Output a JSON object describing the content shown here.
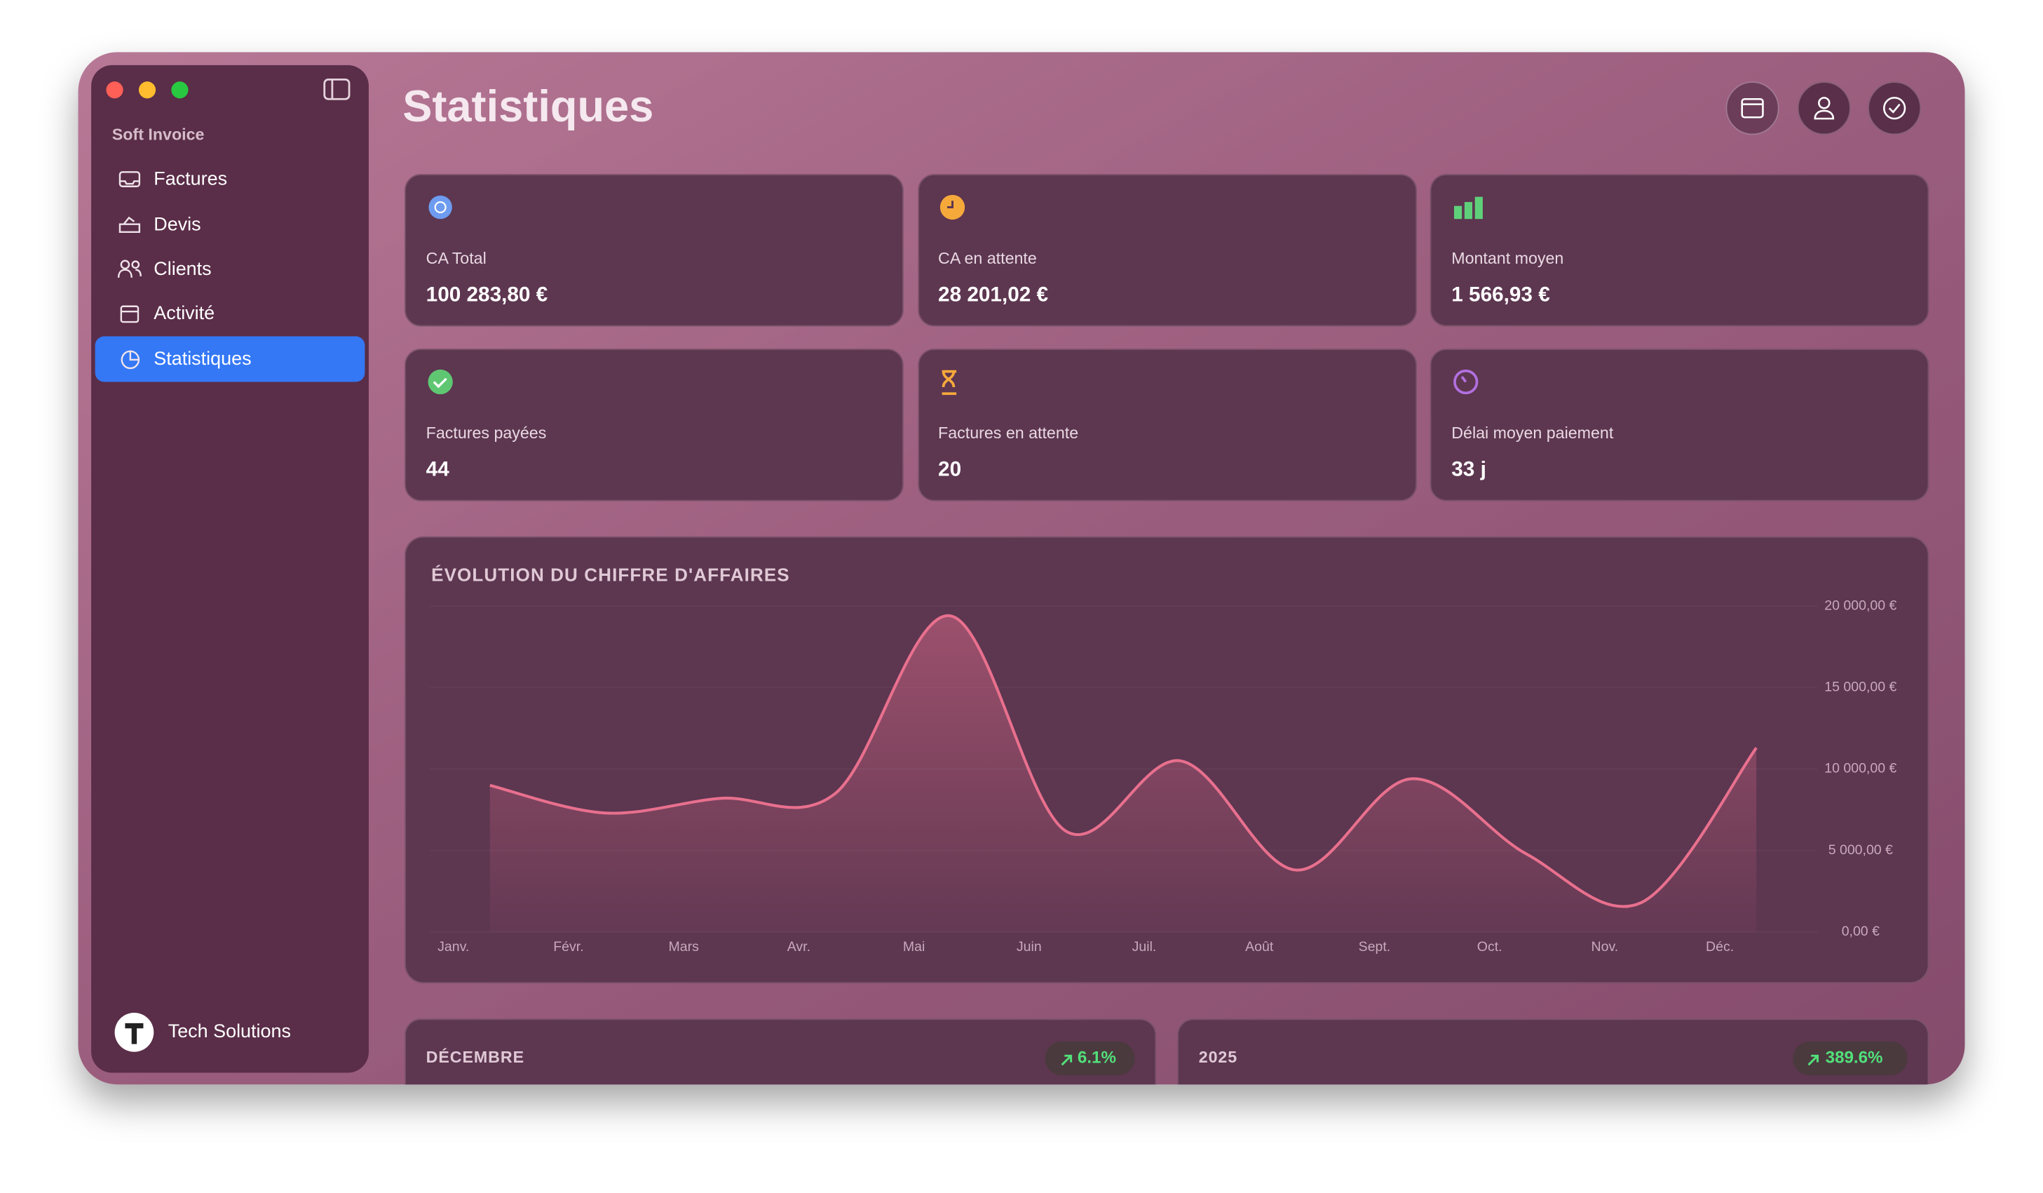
{
  "app": {
    "name": "Soft Invoice",
    "account": "Tech Solutions"
  },
  "sidebar": {
    "items": [
      "Factures",
      "Devis",
      "Clients",
      "Activité",
      "Statistiques"
    ]
  },
  "header": {
    "title": "Statistiques"
  },
  "cards": [
    {
      "label": "CA Total",
      "value": "100 283,80 €"
    },
    {
      "label": "CA en attente",
      "value": "28 201,02 €"
    },
    {
      "label": "Montant moyen",
      "value": "1 566,93 €"
    },
    {
      "label": "Factures payées",
      "value": "44"
    },
    {
      "label": "Factures en attente",
      "value": "20"
    },
    {
      "label": "Délai moyen paiement",
      "value": "33 j"
    }
  ],
  "chart_data": {
    "type": "line",
    "title": "ÉVOLUTION DU CHIFFRE D'AFFAIRES",
    "categories": [
      "Janv.",
      "Févr.",
      "Mars",
      "Avr.",
      "Mai",
      "Juin",
      "Juil.",
      "Août",
      "Sept.",
      "Oct.",
      "Nov.",
      "Déc."
    ],
    "values": [
      9000,
      7300,
      8200,
      8500,
      19400,
      6200,
      10500,
      3800,
      9400,
      4800,
      1800,
      11300
    ],
    "color": "#e8708e",
    "smooth": true,
    "area": true,
    "ylim": [
      0,
      20000
    ],
    "yticks": [
      {
        "value": 0,
        "label": "0,00 €"
      },
      {
        "value": 5000,
        "label": "5 000,00 €"
      },
      {
        "value": 10000,
        "label": "10 000,00 €"
      },
      {
        "value": 15000,
        "label": "15 000,00 €"
      },
      {
        "value": 20000,
        "label": "20 000,00 €"
      }
    ]
  },
  "summaries": [
    {
      "period": "DÉCEMBRE",
      "change": "6.1%"
    },
    {
      "period": "2025",
      "change": "389.6%"
    }
  ]
}
